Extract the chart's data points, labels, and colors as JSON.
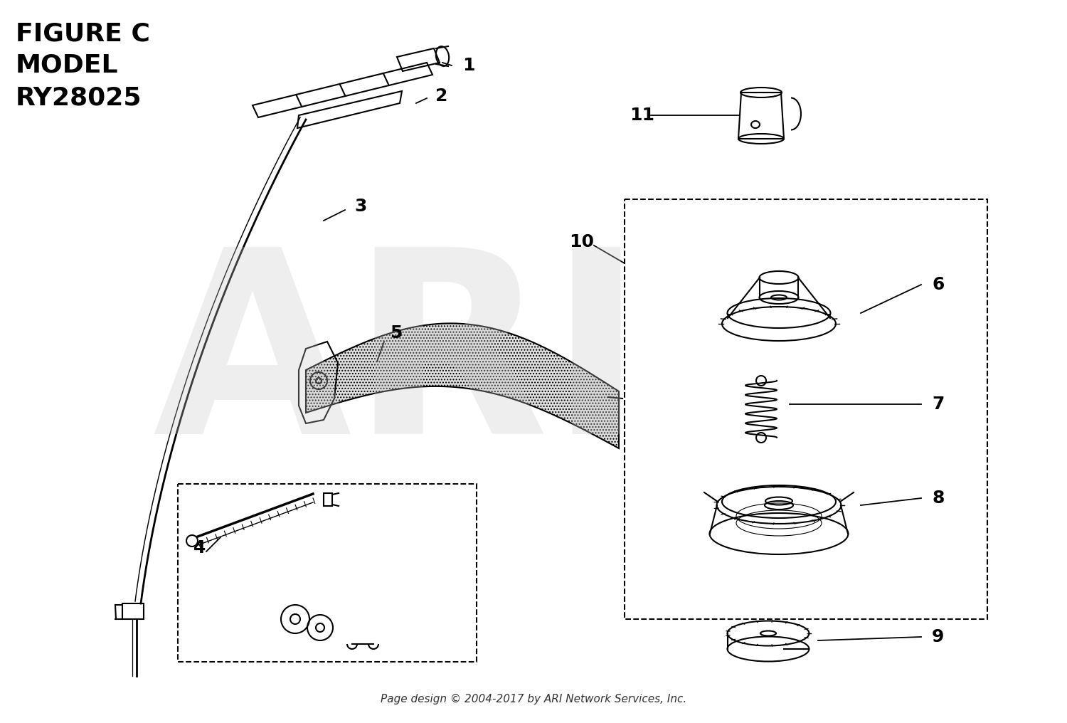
{
  "title_line1": "FIGURE C",
  "title_line2": "MODEL",
  "title_line3": "RY28025",
  "watermark": "ARI",
  "footer": "Page design © 2004-2017 by ARI Network Services, Inc.",
  "bg_color": "#ffffff",
  "line_color": "#000000",
  "watermark_color": "#c8c8c8"
}
